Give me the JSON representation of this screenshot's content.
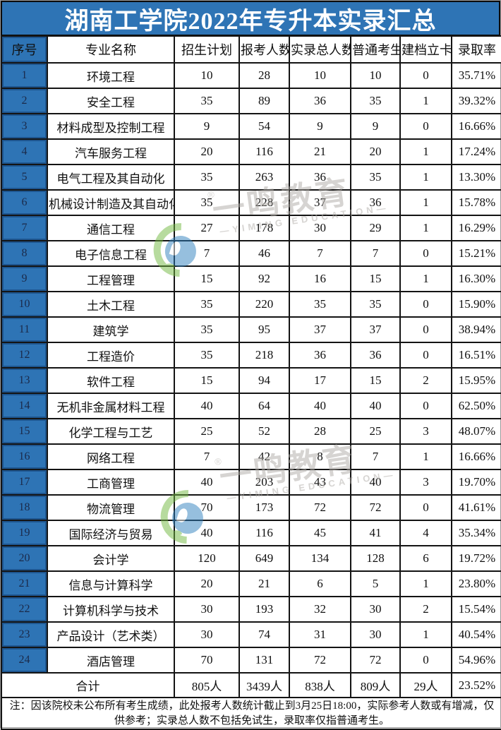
{
  "title": "湖南工学院2022年专升本实录汇总",
  "table": {
    "headers": [
      "序号",
      "专业名称",
      "招生计划",
      "报考人数",
      "实录总人数",
      "普通考生",
      "建档立卡",
      "录取率"
    ],
    "rows": [
      [
        "1",
        "环境工程",
        "10",
        "28",
        "10",
        "10",
        "0",
        "35.71%"
      ],
      [
        "2",
        "安全工程",
        "35",
        "89",
        "36",
        "35",
        "1",
        "39.32%"
      ],
      [
        "3",
        "材料成型及控制工程",
        "9",
        "54",
        "9",
        "9",
        "0",
        "16.66%"
      ],
      [
        "4",
        "汽车服务工程",
        "20",
        "116",
        "21",
        "20",
        "1",
        "17.24%"
      ],
      [
        "5",
        "电气工程及其自动化",
        "35",
        "263",
        "36",
        "35",
        "1",
        "13.30%"
      ],
      [
        "6",
        "机械设计制造及其自动化",
        "35",
        "228",
        "37",
        "36",
        "1",
        "15.78%"
      ],
      [
        "7",
        "通信工程",
        "27",
        "178",
        "30",
        "29",
        "1",
        "16.29%"
      ],
      [
        "8",
        "电子信息工程",
        "7",
        "46",
        "7",
        "7",
        "0",
        "15.21%"
      ],
      [
        "9",
        "工程管理",
        "15",
        "92",
        "16",
        "15",
        "1",
        "16.30%"
      ],
      [
        "10",
        "土木工程",
        "35",
        "220",
        "35",
        "35",
        "0",
        "15.90%"
      ],
      [
        "11",
        "建筑学",
        "35",
        "95",
        "37",
        "37",
        "0",
        "38.94%"
      ],
      [
        "12",
        "工程造价",
        "35",
        "218",
        "36",
        "36",
        "0",
        "16.51%"
      ],
      [
        "13",
        "软件工程",
        "15",
        "94",
        "17",
        "15",
        "2",
        "15.95%"
      ],
      [
        "14",
        "无机非金属材料工程",
        "40",
        "64",
        "40",
        "40",
        "0",
        "62.50%"
      ],
      [
        "15",
        "化学工程与工艺",
        "25",
        "52",
        "28",
        "25",
        "3",
        "48.07%"
      ],
      [
        "16",
        "网络工程",
        "7",
        "42",
        "8",
        "7",
        "1",
        "16.66%"
      ],
      [
        "17",
        "工商管理",
        "40",
        "203",
        "43",
        "40",
        "3",
        "19.70%"
      ],
      [
        "18",
        "物流管理",
        "70",
        "173",
        "72",
        "72",
        "0",
        "41.61%"
      ],
      [
        "19",
        "国际经济与贸易",
        "40",
        "116",
        "45",
        "41",
        "4",
        "35.34%"
      ],
      [
        "20",
        "会计学",
        "120",
        "649",
        "134",
        "128",
        "6",
        "19.72%"
      ],
      [
        "21",
        "信息与计算科学",
        "20",
        "21",
        "6",
        "5",
        "1",
        "23.80%"
      ],
      [
        "22",
        "计算机科学与技术",
        "30",
        "193",
        "32",
        "30",
        "2",
        "15.54%"
      ],
      [
        "23",
        "产品设计（艺术类）",
        "30",
        "74",
        "31",
        "30",
        "1",
        "40.54%"
      ],
      [
        "24",
        "酒店管理",
        "70",
        "131",
        "72",
        "72",
        "0",
        "54.96%"
      ]
    ],
    "total": {
      "label": "合计",
      "values": [
        "805人",
        "3439人",
        "838人",
        "809人",
        "29人",
        "23.52%"
      ]
    }
  },
  "note": "注：因该院校未公布所有考生成绩，此处报考人数统计截止到3月25日18:00，实际参考人数或有增减，仅供参考；实录总人数不包括免试生，录取率仅指普通考生。",
  "watermark": {
    "text": "一鸣教育",
    "subtext": "—YIMING EDUCATION—",
    "registered_mark": "®"
  },
  "colors": {
    "accent_blue": "#2E74B5",
    "grid_black": "#141414",
    "serial_text_navy": "#1B2A4A",
    "watermark_gray": "#AFABA6",
    "watermark_green": "#72B840",
    "watermark_blue": "#2F80BF",
    "title_text": "#FFFFFF"
  }
}
